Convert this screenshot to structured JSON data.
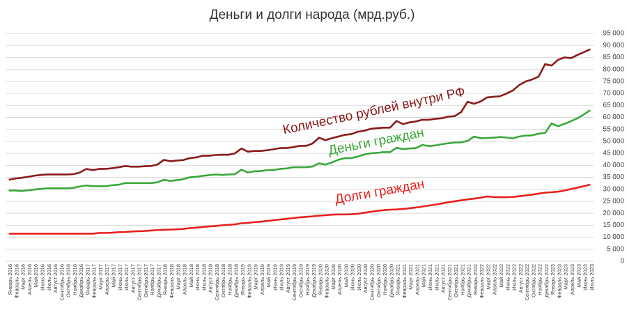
{
  "chart_data": {
    "type": "line",
    "title": "Деньги и долги народа (мрд.руб.)",
    "categories": [
      "Январь 2016",
      "Февраль 2016",
      "Март 2016",
      "Апрель 2016",
      "Май 2016",
      "Июнь 2016",
      "Июль 2016",
      "Август 2016",
      "Сентябрь 2016",
      "Октябрь 2016",
      "Ноябрь 2016",
      "Декабрь 2016",
      "Январь 2017",
      "Февраль 2017",
      "Март 2017",
      "Апрель 2017",
      "Май 2017",
      "Июнь 2017",
      "Июль 2017",
      "Август 2017",
      "Сентябрь 2017",
      "Октябрь 2017",
      "Ноябрь 2017",
      "Декабрь 2017",
      "Январь 2018",
      "Февраль 2018",
      "Март 2018",
      "Апрель 2018",
      "Май 2018",
      "Июнь 2018",
      "Июль 2018",
      "Август 2018",
      "Сентябрь 2018",
      "Октябрь 2018",
      "Ноябрь 2018",
      "Декабрь 2018",
      "Январь 2019",
      "Февраль 2019",
      "Март 2019",
      "Апрель 2019",
      "Май 2019",
      "Июнь 2019",
      "Июль 2019",
      "Август 2019",
      "Сентябрь 2019",
      "Октябрь 2019",
      "Ноябрь 2019",
      "Декабрь 2019",
      "Январь 2020",
      "Февраль 2020",
      "Март 2020",
      "Апрель 2020",
      "Май 2020",
      "Июнь 2020",
      "Июль 2020",
      "Август 2020",
      "Сентябрь 2020",
      "Октябрь 2020",
      "Ноябрь 2020",
      "Декабрь 2020",
      "Январь 2021",
      "Февраль 2021",
      "Март 2021",
      "Апрель 2021",
      "Май 2021",
      "Июнь 2021",
      "Июль 2021",
      "Август 2021",
      "Сентябрь 2021",
      "Октябрь 2021",
      "Ноябрь 2021",
      "Декабрь 2021",
      "Январь 2022",
      "Февраль 2022",
      "Март 2022",
      "Апрель 2022",
      "Май 2022",
      "Июнь 2022",
      "Июль 2022",
      "Август 2022",
      "Сентябрь 2022",
      "Октябрь 2022",
      "Ноябрь 2022",
      "Декабрь 2022",
      "Январь 2023",
      "Февраль 2023",
      "Март 2023",
      "Апрель 2023",
      "Май 2023",
      "Июнь 2023",
      "Июль 2023"
    ],
    "series": [
      {
        "name": "Количество рублей внутри РФ",
        "color": "#8b1a1a",
        "values": [
          34000,
          34500,
          34800,
          35200,
          35700,
          36000,
          36200,
          36200,
          36200,
          36200,
          36300,
          37000,
          38500,
          38000,
          38500,
          38500,
          38800,
          39200,
          39700,
          39400,
          39400,
          39600,
          39700,
          40300,
          42300,
          41700,
          42000,
          42200,
          43000,
          43300,
          44000,
          44000,
          44300,
          44400,
          44400,
          45000,
          47000,
          45700,
          46000,
          46000,
          46300,
          46700,
          47200,
          47200,
          47600,
          48100,
          48100,
          49100,
          51500,
          50500,
          51300,
          52000,
          52700,
          53000,
          54000,
          54400,
          55200,
          55500,
          55700,
          55700,
          58500,
          57200,
          57900,
          58300,
          59000,
          59000,
          59400,
          59600,
          60300,
          60500,
          62200,
          66500,
          65700,
          66600,
          68300,
          68600,
          68800,
          69900,
          71200,
          73500,
          75000,
          75800,
          77000,
          82200,
          81600,
          84000,
          85000,
          84700,
          86000,
          87200,
          88400
        ]
      },
      {
        "name": "Деньги граждан",
        "color": "#3aa83a",
        "values": [
          29500,
          29500,
          29300,
          29600,
          29900,
          30200,
          30400,
          30400,
          30400,
          30400,
          30600,
          31200,
          31600,
          31300,
          31300,
          31300,
          31700,
          31900,
          32600,
          32600,
          32600,
          32600,
          32600,
          32900,
          34000,
          33500,
          33800,
          34200,
          35000,
          35200,
          35600,
          35900,
          36200,
          36000,
          36200,
          36300,
          38200,
          37000,
          37500,
          37600,
          38000,
          38100,
          38500,
          38700,
          39200,
          39200,
          39200,
          39500,
          40800,
          40300,
          41200,
          42300,
          43000,
          43000,
          43700,
          44500,
          45000,
          45200,
          45500,
          45500,
          47300,
          46800,
          47000,
          47200,
          48500,
          48000,
          48300,
          48800,
          49200,
          49500,
          49600,
          50200,
          52000,
          51300,
          51400,
          51500,
          51800,
          51600,
          51200,
          52000,
          52400,
          52500,
          53200,
          53500,
          57500,
          56300,
          57300,
          58400,
          59600,
          61200,
          63000
        ]
      },
      {
        "name": "Долги граждан",
        "color": "#e8201e",
        "values": [
          11500,
          11500,
          11500,
          11500,
          11500,
          11500,
          11500,
          11500,
          11500,
          11500,
          11500,
          11500,
          11500,
          11500,
          11800,
          11800,
          11900,
          12100,
          12200,
          12400,
          12500,
          12600,
          12800,
          13000,
          13100,
          13200,
          13300,
          13500,
          13800,
          14000,
          14300,
          14500,
          14700,
          15000,
          15200,
          15400,
          15800,
          16000,
          16300,
          16500,
          16800,
          17100,
          17400,
          17700,
          18000,
          18300,
          18500,
          18700,
          19000,
          19200,
          19400,
          19500,
          19500,
          19600,
          19800,
          20200,
          20600,
          21000,
          21300,
          21500,
          21600,
          21800,
          22100,
          22400,
          22800,
          23200,
          23600,
          24100,
          24600,
          25000,
          25400,
          25800,
          26100,
          26500,
          27000,
          26800,
          26700,
          26700,
          26800,
          27100,
          27400,
          27800,
          28200,
          28600,
          28800,
          29000,
          29500,
          30100,
          30700,
          31300,
          32000
        ]
      }
    ],
    "ylim": [
      0,
      95000
    ],
    "yticks": [
      0,
      {
        "value": 5000,
        "label": "5 000"
      },
      {
        "value": 10000,
        "label": "10 000"
      },
      {
        "value": 15000,
        "label": "15 000"
      },
      {
        "value": 20000,
        "label": "20 000"
      },
      {
        "value": 25000,
        "label": "25 000"
      },
      {
        "value": 30000,
        "label": "30 000"
      },
      {
        "value": 35000,
        "label": "35 000"
      },
      {
        "value": 40000,
        "label": "40 000"
      },
      {
        "value": 45000,
        "label": "45 000"
      },
      {
        "value": 50000,
        "label": "50 000"
      },
      {
        "value": 55000,
        "label": "55 000"
      },
      {
        "value": 60000,
        "label": "60 000"
      },
      {
        "value": 65000,
        "label": "65 000"
      },
      {
        "value": 70000,
        "label": "70 000"
      },
      {
        "value": 75000,
        "label": "75 000"
      },
      {
        "value": 80000,
        "label": "80 000"
      },
      {
        "value": 85000,
        "label": "85 000"
      },
      {
        "value": 90000,
        "label": "90 000"
      },
      {
        "value": 95000,
        "label": "95 000"
      }
    ],
    "grid": true
  }
}
